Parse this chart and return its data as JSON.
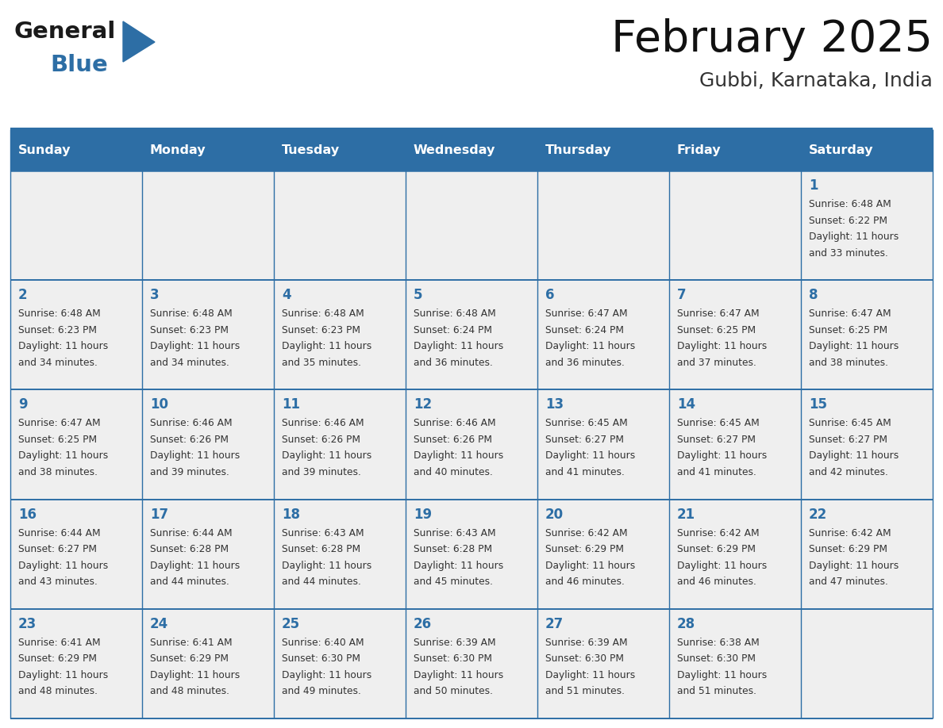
{
  "title": "February 2025",
  "subtitle": "Gubbi, Karnataka, India",
  "header_bg_color": "#2D6EA5",
  "header_text_color": "#FFFFFF",
  "cell_bg_color": "#EFEFEF",
  "day_number_color": "#2D6EA5",
  "text_color": "#333333",
  "border_color": "#2D6EA5",
  "line_color": "#AAAAAA",
  "days_of_week": [
    "Sunday",
    "Monday",
    "Tuesday",
    "Wednesday",
    "Thursday",
    "Friday",
    "Saturday"
  ],
  "logo_general_color": "#1a1a1a",
  "logo_blue_color": "#2D6EA5",
  "logo_triangle_color": "#2D6EA5",
  "weeks": [
    [
      {
        "day": null,
        "sunrise": null,
        "sunset": null,
        "daylight_h": null,
        "daylight_m": null
      },
      {
        "day": null,
        "sunrise": null,
        "sunset": null,
        "daylight_h": null,
        "daylight_m": null
      },
      {
        "day": null,
        "sunrise": null,
        "sunset": null,
        "daylight_h": null,
        "daylight_m": null
      },
      {
        "day": null,
        "sunrise": null,
        "sunset": null,
        "daylight_h": null,
        "daylight_m": null
      },
      {
        "day": null,
        "sunrise": null,
        "sunset": null,
        "daylight_h": null,
        "daylight_m": null
      },
      {
        "day": null,
        "sunrise": null,
        "sunset": null,
        "daylight_h": null,
        "daylight_m": null
      },
      {
        "day": 1,
        "sunrise": "6:48 AM",
        "sunset": "6:22 PM",
        "daylight_h": "11 hours",
        "daylight_m": "and 33 minutes."
      }
    ],
    [
      {
        "day": 2,
        "sunrise": "6:48 AM",
        "sunset": "6:23 PM",
        "daylight_h": "11 hours",
        "daylight_m": "and 34 minutes."
      },
      {
        "day": 3,
        "sunrise": "6:48 AM",
        "sunset": "6:23 PM",
        "daylight_h": "11 hours",
        "daylight_m": "and 34 minutes."
      },
      {
        "day": 4,
        "sunrise": "6:48 AM",
        "sunset": "6:23 PM",
        "daylight_h": "11 hours",
        "daylight_m": "and 35 minutes."
      },
      {
        "day": 5,
        "sunrise": "6:48 AM",
        "sunset": "6:24 PM",
        "daylight_h": "11 hours",
        "daylight_m": "and 36 minutes."
      },
      {
        "day": 6,
        "sunrise": "6:47 AM",
        "sunset": "6:24 PM",
        "daylight_h": "11 hours",
        "daylight_m": "and 36 minutes."
      },
      {
        "day": 7,
        "sunrise": "6:47 AM",
        "sunset": "6:25 PM",
        "daylight_h": "11 hours",
        "daylight_m": "and 37 minutes."
      },
      {
        "day": 8,
        "sunrise": "6:47 AM",
        "sunset": "6:25 PM",
        "daylight_h": "11 hours",
        "daylight_m": "and 38 minutes."
      }
    ],
    [
      {
        "day": 9,
        "sunrise": "6:47 AM",
        "sunset": "6:25 PM",
        "daylight_h": "11 hours",
        "daylight_m": "and 38 minutes."
      },
      {
        "day": 10,
        "sunrise": "6:46 AM",
        "sunset": "6:26 PM",
        "daylight_h": "11 hours",
        "daylight_m": "and 39 minutes."
      },
      {
        "day": 11,
        "sunrise": "6:46 AM",
        "sunset": "6:26 PM",
        "daylight_h": "11 hours",
        "daylight_m": "and 39 minutes."
      },
      {
        "day": 12,
        "sunrise": "6:46 AM",
        "sunset": "6:26 PM",
        "daylight_h": "11 hours",
        "daylight_m": "and 40 minutes."
      },
      {
        "day": 13,
        "sunrise": "6:45 AM",
        "sunset": "6:27 PM",
        "daylight_h": "11 hours",
        "daylight_m": "and 41 minutes."
      },
      {
        "day": 14,
        "sunrise": "6:45 AM",
        "sunset": "6:27 PM",
        "daylight_h": "11 hours",
        "daylight_m": "and 41 minutes."
      },
      {
        "day": 15,
        "sunrise": "6:45 AM",
        "sunset": "6:27 PM",
        "daylight_h": "11 hours",
        "daylight_m": "and 42 minutes."
      }
    ],
    [
      {
        "day": 16,
        "sunrise": "6:44 AM",
        "sunset": "6:27 PM",
        "daylight_h": "11 hours",
        "daylight_m": "and 43 minutes."
      },
      {
        "day": 17,
        "sunrise": "6:44 AM",
        "sunset": "6:28 PM",
        "daylight_h": "11 hours",
        "daylight_m": "and 44 minutes."
      },
      {
        "day": 18,
        "sunrise": "6:43 AM",
        "sunset": "6:28 PM",
        "daylight_h": "11 hours",
        "daylight_m": "and 44 minutes."
      },
      {
        "day": 19,
        "sunrise": "6:43 AM",
        "sunset": "6:28 PM",
        "daylight_h": "11 hours",
        "daylight_m": "and 45 minutes."
      },
      {
        "day": 20,
        "sunrise": "6:42 AM",
        "sunset": "6:29 PM",
        "daylight_h": "11 hours",
        "daylight_m": "and 46 minutes."
      },
      {
        "day": 21,
        "sunrise": "6:42 AM",
        "sunset": "6:29 PM",
        "daylight_h": "11 hours",
        "daylight_m": "and 46 minutes."
      },
      {
        "day": 22,
        "sunrise": "6:42 AM",
        "sunset": "6:29 PM",
        "daylight_h": "11 hours",
        "daylight_m": "and 47 minutes."
      }
    ],
    [
      {
        "day": 23,
        "sunrise": "6:41 AM",
        "sunset": "6:29 PM",
        "daylight_h": "11 hours",
        "daylight_m": "and 48 minutes."
      },
      {
        "day": 24,
        "sunrise": "6:41 AM",
        "sunset": "6:29 PM",
        "daylight_h": "11 hours",
        "daylight_m": "and 48 minutes."
      },
      {
        "day": 25,
        "sunrise": "6:40 AM",
        "sunset": "6:30 PM",
        "daylight_h": "11 hours",
        "daylight_m": "and 49 minutes."
      },
      {
        "day": 26,
        "sunrise": "6:39 AM",
        "sunset": "6:30 PM",
        "daylight_h": "11 hours",
        "daylight_m": "and 50 minutes."
      },
      {
        "day": 27,
        "sunrise": "6:39 AM",
        "sunset": "6:30 PM",
        "daylight_h": "11 hours",
        "daylight_m": "and 51 minutes."
      },
      {
        "day": 28,
        "sunrise": "6:38 AM",
        "sunset": "6:30 PM",
        "daylight_h": "11 hours",
        "daylight_m": "and 51 minutes."
      },
      {
        "day": null,
        "sunrise": null,
        "sunset": null,
        "daylight_h": null,
        "daylight_m": null
      }
    ]
  ]
}
